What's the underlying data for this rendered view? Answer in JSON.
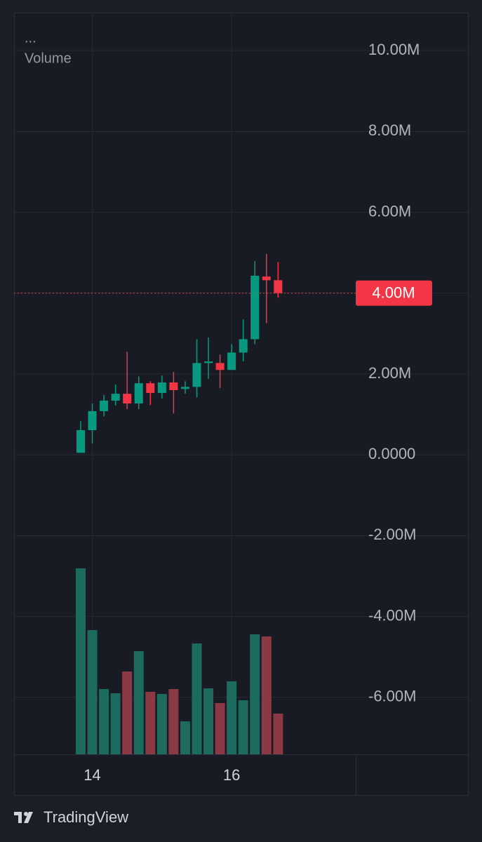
{
  "chart_data": {
    "type": "candlestick",
    "pane_labels": [
      "...",
      "Volume"
    ],
    "categories": [
      null,
      "14",
      null,
      null,
      null,
      null,
      null,
      null,
      null,
      null,
      null,
      null,
      null,
      "16",
      null,
      null,
      null,
      null
    ],
    "open": [
      50000,
      610000,
      1080000,
      1340000,
      1510000,
      1270000,
      1770000,
      1530000,
      1790000,
      1630000,
      1680000,
      2270000,
      2270000,
      2100000,
      2530000,
      2860000,
      4410000,
      4320000
    ],
    "high": [
      830000,
      1270000,
      1480000,
      1740000,
      2550000,
      1940000,
      1820000,
      1960000,
      2050000,
      1820000,
      2860000,
      2900000,
      2480000,
      2740000,
      3350000,
      4790000,
      4970000,
      4770000
    ],
    "low": [
      50000,
      280000,
      950000,
      1220000,
      1130000,
      1130000,
      1230000,
      1390000,
      1020000,
      1510000,
      1420000,
      1880000,
      1650000,
      2100000,
      2310000,
      2740000,
      3260000,
      3890000
    ],
    "close": [
      610000,
      1080000,
      1340000,
      1510000,
      1270000,
      1770000,
      1530000,
      1790000,
      1600000,
      1680000,
      2270000,
      2310000,
      2100000,
      2530000,
      2860000,
      4430000,
      4320000,
      4000000
    ],
    "volume": [
      265,
      177,
      93,
      87,
      118,
      147,
      89,
      86,
      93,
      47,
      158,
      94,
      73,
      104,
      77,
      171,
      168,
      58
    ],
    "up_color": "#089981",
    "down_color": "#f23645",
    "volume_up_color": "#1d6b5f",
    "volume_down_color": "#8b3a45",
    "ylim": [
      -7410000,
      10940000
    ],
    "yticks": [
      {
        "value": 10000000,
        "label": "10.00M"
      },
      {
        "value": 8000000,
        "label": "8.00M"
      },
      {
        "value": 6000000,
        "label": "6.00M"
      },
      {
        "value": 4000000,
        "label": "4.00M"
      },
      {
        "value": 2000000,
        "label": "2.00M"
      },
      {
        "value": 0,
        "label": "0.0000"
      },
      {
        "value": -2000000,
        "label": "-2.00M"
      },
      {
        "value": -4000000,
        "label": "-4.00M"
      },
      {
        "value": -6000000,
        "label": "-6.00M"
      }
    ],
    "last_price": {
      "value": 4000000,
      "label": "4.00M"
    },
    "grid": true
  },
  "footer": {
    "brand": "TradingView"
  }
}
